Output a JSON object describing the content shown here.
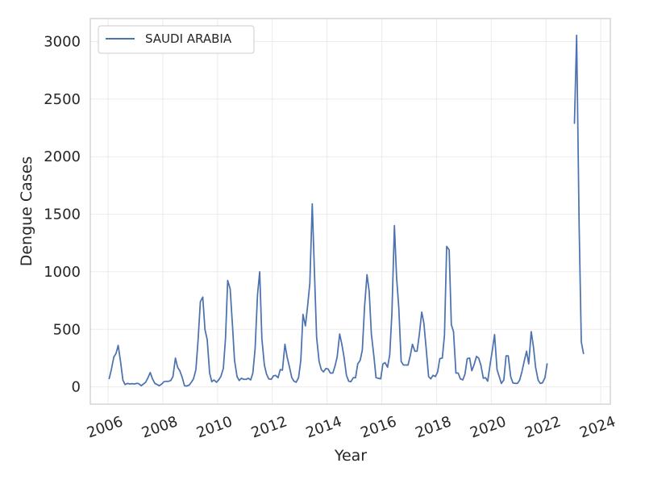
{
  "chart_data": {
    "type": "line",
    "xlabel": "Year",
    "ylabel": "Dengue Cases",
    "xlim": [
      2005.35,
      2024.35
    ],
    "ylim": [
      -150,
      3200
    ],
    "xticks": [
      2006,
      2008,
      2010,
      2012,
      2014,
      2016,
      2018,
      2020,
      2022,
      2024
    ],
    "yticks": [
      0,
      500,
      1000,
      1500,
      2000,
      2500,
      3000
    ],
    "grid": true,
    "legend_position": "top-left",
    "series": [
      {
        "name": "SAUDI ARABIA",
        "color": "#4c72b0",
        "segments": [
          [
            [
              2006.04,
              72
            ],
            [
              2006.12,
              150
            ],
            [
              2006.21,
              260
            ],
            [
              2006.29,
              290
            ],
            [
              2006.37,
              360
            ],
            [
              2006.46,
              210
            ],
            [
              2006.54,
              60
            ],
            [
              2006.62,
              20
            ],
            [
              2006.71,
              30
            ],
            [
              2006.79,
              25
            ],
            [
              2006.87,
              28
            ],
            [
              2006.96,
              25
            ],
            [
              2007.04,
              30
            ],
            [
              2007.12,
              28
            ],
            [
              2007.21,
              10
            ],
            [
              2007.29,
              25
            ],
            [
              2007.37,
              40
            ],
            [
              2007.46,
              80
            ],
            [
              2007.54,
              125
            ],
            [
              2007.62,
              70
            ],
            [
              2007.71,
              30
            ],
            [
              2007.79,
              20
            ],
            [
              2007.87,
              10
            ],
            [
              2007.96,
              25
            ],
            [
              2008.04,
              45
            ],
            [
              2008.12,
              48
            ],
            [
              2008.21,
              48
            ],
            [
              2008.29,
              55
            ],
            [
              2008.37,
              90
            ],
            [
              2008.46,
              250
            ],
            [
              2008.54,
              170
            ],
            [
              2008.62,
              140
            ],
            [
              2008.71,
              80
            ],
            [
              2008.79,
              10
            ],
            [
              2008.87,
              8
            ],
            [
              2008.96,
              15
            ],
            [
              2009.04,
              40
            ],
            [
              2009.12,
              70
            ],
            [
              2009.21,
              150
            ],
            [
              2009.29,
              420
            ],
            [
              2009.37,
              740
            ],
            [
              2009.46,
              780
            ],
            [
              2009.54,
              500
            ],
            [
              2009.62,
              410
            ],
            [
              2009.71,
              120
            ],
            [
              2009.79,
              45
            ],
            [
              2009.87,
              60
            ],
            [
              2009.96,
              40
            ],
            [
              2010.04,
              60
            ],
            [
              2010.12,
              90
            ],
            [
              2010.21,
              160
            ],
            [
              2010.29,
              420
            ],
            [
              2010.37,
              925
            ],
            [
              2010.46,
              850
            ],
            [
              2010.54,
              550
            ],
            [
              2010.62,
              230
            ],
            [
              2010.71,
              90
            ],
            [
              2010.79,
              55
            ],
            [
              2010.87,
              75
            ],
            [
              2010.96,
              65
            ],
            [
              2011.04,
              65
            ],
            [
              2011.12,
              75
            ],
            [
              2011.21,
              60
            ],
            [
              2011.29,
              120
            ],
            [
              2011.37,
              330
            ],
            [
              2011.46,
              800
            ],
            [
              2011.54,
              1000
            ],
            [
              2011.62,
              420
            ],
            [
              2011.71,
              190
            ],
            [
              2011.79,
              110
            ],
            [
              2011.87,
              70
            ],
            [
              2011.96,
              65
            ],
            [
              2012.04,
              95
            ],
            [
              2012.12,
              100
            ],
            [
              2012.21,
              80
            ],
            [
              2012.29,
              150
            ],
            [
              2012.37,
              145
            ],
            [
              2012.46,
              370
            ],
            [
              2012.54,
              260
            ],
            [
              2012.62,
              180
            ],
            [
              2012.71,
              80
            ],
            [
              2012.79,
              50
            ],
            [
              2012.87,
              40
            ],
            [
              2012.96,
              80
            ],
            [
              2013.04,
              230
            ],
            [
              2013.12,
              630
            ],
            [
              2013.21,
              530
            ],
            [
              2013.29,
              700
            ],
            [
              2013.37,
              900
            ],
            [
              2013.46,
              1590
            ],
            [
              2013.54,
              1000
            ],
            [
              2013.62,
              430
            ],
            [
              2013.71,
              220
            ],
            [
              2013.79,
              150
            ],
            [
              2013.87,
              130
            ],
            [
              2013.96,
              160
            ],
            [
              2014.04,
              155
            ],
            [
              2014.12,
              120
            ],
            [
              2014.21,
              120
            ],
            [
              2014.29,
              180
            ],
            [
              2014.37,
              260
            ],
            [
              2014.46,
              460
            ],
            [
              2014.54,
              370
            ],
            [
              2014.62,
              260
            ],
            [
              2014.71,
              100
            ],
            [
              2014.79,
              50
            ],
            [
              2014.87,
              45
            ],
            [
              2014.96,
              80
            ],
            [
              2015.04,
              80
            ],
            [
              2015.12,
              200
            ],
            [
              2015.21,
              230
            ],
            [
              2015.29,
              320
            ],
            [
              2015.37,
              700
            ],
            [
              2015.46,
              975
            ],
            [
              2015.54,
              830
            ],
            [
              2015.62,
              460
            ],
            [
              2015.71,
              270
            ],
            [
              2015.79,
              80
            ],
            [
              2015.87,
              75
            ],
            [
              2015.96,
              70
            ],
            [
              2016.04,
              200
            ],
            [
              2016.12,
              210
            ],
            [
              2016.21,
              170
            ],
            [
              2016.29,
              280
            ],
            [
              2016.37,
              640
            ],
            [
              2016.46,
              1400
            ],
            [
              2016.54,
              950
            ],
            [
              2016.62,
              690
            ],
            [
              2016.71,
              220
            ],
            [
              2016.79,
              190
            ],
            [
              2016.87,
              190
            ],
            [
              2016.96,
              190
            ],
            [
              2017.04,
              270
            ],
            [
              2017.12,
              370
            ],
            [
              2017.21,
              310
            ],
            [
              2017.29,
              310
            ],
            [
              2017.37,
              450
            ],
            [
              2017.46,
              650
            ],
            [
              2017.54,
              550
            ],
            [
              2017.62,
              340
            ],
            [
              2017.71,
              90
            ],
            [
              2017.79,
              70
            ],
            [
              2017.87,
              100
            ],
            [
              2017.96,
              90
            ],
            [
              2018.04,
              130
            ],
            [
              2018.12,
              245
            ],
            [
              2018.21,
              250
            ],
            [
              2018.29,
              450
            ],
            [
              2018.37,
              1220
            ],
            [
              2018.46,
              1190
            ],
            [
              2018.54,
              540
            ],
            [
              2018.62,
              480
            ],
            [
              2018.71,
              120
            ],
            [
              2018.79,
              120
            ],
            [
              2018.87,
              70
            ],
            [
              2018.96,
              60
            ],
            [
              2019.04,
              110
            ],
            [
              2019.12,
              245
            ],
            [
              2019.21,
              250
            ],
            [
              2019.29,
              140
            ],
            [
              2019.37,
              190
            ],
            [
              2019.46,
              265
            ],
            [
              2019.54,
              250
            ],
            [
              2019.62,
              190
            ],
            [
              2019.71,
              75
            ],
            [
              2019.79,
              80
            ],
            [
              2019.87,
              50
            ],
            [
              2019.96,
              200
            ],
            [
              2020.04,
              320
            ],
            [
              2020.12,
              455
            ],
            [
              2020.21,
              150
            ],
            [
              2020.29,
              90
            ],
            [
              2020.37,
              30
            ],
            [
              2020.46,
              60
            ],
            [
              2020.54,
              270
            ],
            [
              2020.62,
              270
            ],
            [
              2020.71,
              90
            ],
            [
              2020.79,
              35
            ],
            [
              2020.87,
              30
            ],
            [
              2020.96,
              30
            ],
            [
              2021.04,
              60
            ],
            [
              2021.12,
              130
            ],
            [
              2021.21,
              230
            ],
            [
              2021.29,
              310
            ],
            [
              2021.37,
              200
            ],
            [
              2021.46,
              480
            ],
            [
              2021.54,
              350
            ],
            [
              2021.62,
              170
            ],
            [
              2021.71,
              60
            ],
            [
              2021.79,
              30
            ],
            [
              2021.87,
              35
            ],
            [
              2021.96,
              80
            ],
            [
              2022.04,
              200
            ]
          ],
          [
            [
              2023.04,
              2290
            ],
            [
              2023.12,
              3055
            ],
            [
              2023.21,
              1400
            ],
            [
              2023.29,
              390
            ],
            [
              2023.37,
              290
            ]
          ]
        ]
      }
    ]
  }
}
